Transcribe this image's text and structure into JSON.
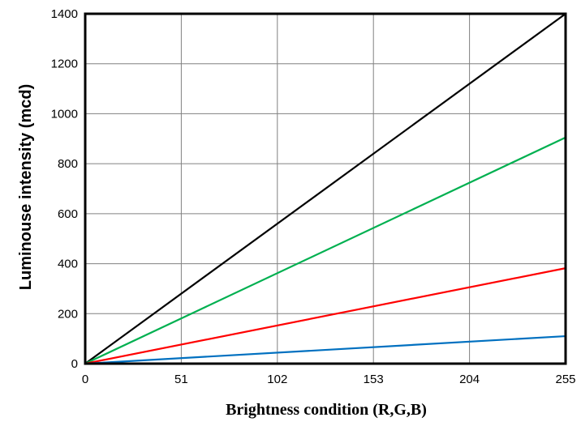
{
  "chart_data": {
    "type": "line",
    "title": "",
    "xlabel": "Brightness condition (R,G,B)",
    "ylabel": "Luminouse intensity (mcd)",
    "xlim": [
      0,
      255
    ],
    "ylim": [
      0,
      1400
    ],
    "x_ticks": [
      "0",
      "51",
      "102",
      "153",
      "204",
      "255"
    ],
    "y_ticks": [
      "0",
      "200",
      "400",
      "600",
      "800",
      "1000",
      "1200",
      "1400"
    ],
    "grid": true,
    "legend": "none",
    "series": [
      {
        "color": "#000000",
        "x": [
          0,
          255
        ],
        "y": [
          0,
          1400
        ]
      },
      {
        "color": "#00b050",
        "x": [
          0,
          255
        ],
        "y": [
          0,
          905
        ]
      },
      {
        "color": "#ff0000",
        "x": [
          0,
          255
        ],
        "y": [
          0,
          382
        ]
      },
      {
        "color": "#0070c0",
        "x": [
          0,
          255
        ],
        "y": [
          0,
          110
        ]
      }
    ]
  }
}
